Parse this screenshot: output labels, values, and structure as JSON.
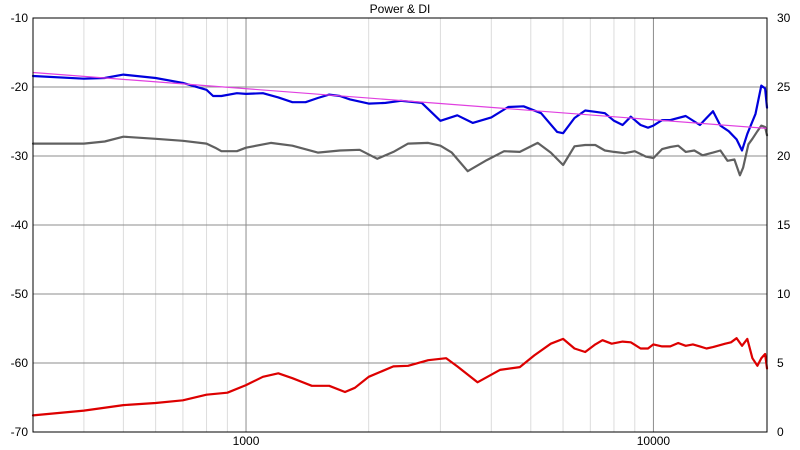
{
  "chart_data": {
    "type": "line",
    "title": "Power & DI",
    "x_scale": "log",
    "xlim": [
      300,
      19000
    ],
    "x_ticks": [
      1000,
      10000
    ],
    "x_tick_labels": [
      "1000",
      "10000"
    ],
    "y_left": {
      "lim": [
        -70,
        -10
      ],
      "ticks": [
        -70,
        -60,
        -50,
        -40,
        -30,
        -20,
        -10
      ],
      "tick_labels": [
        "-70",
        "-60",
        "-50",
        "-40",
        "-30",
        "-20",
        "-10"
      ]
    },
    "y_right": {
      "lim": [
        0,
        30
      ],
      "ticks": [
        0,
        5,
        10,
        15,
        20,
        25,
        30
      ],
      "tick_labels": [
        "0",
        "5",
        "10",
        "15",
        "20",
        "25",
        "30"
      ]
    },
    "grid": true,
    "series": [
      {
        "color": "#0000dd",
        "axis": "left",
        "points": [
          [
            300,
            -18.4
          ],
          [
            400,
            -18.8
          ],
          [
            450,
            -18.7
          ],
          [
            500,
            -18.2
          ],
          [
            600,
            -18.7
          ],
          [
            700,
            -19.4
          ],
          [
            800,
            -20.4
          ],
          [
            830,
            -21.3
          ],
          [
            870,
            -21.3
          ],
          [
            950,
            -20.9
          ],
          [
            1000,
            -21.0
          ],
          [
            1100,
            -20.9
          ],
          [
            1200,
            -21.5
          ],
          [
            1300,
            -22.2
          ],
          [
            1400,
            -22.2
          ],
          [
            1500,
            -21.6
          ],
          [
            1600,
            -21.1
          ],
          [
            1700,
            -21.3
          ],
          [
            1800,
            -21.8
          ],
          [
            2000,
            -22.4
          ],
          [
            2200,
            -22.3
          ],
          [
            2400,
            -22.0
          ],
          [
            2700,
            -22.3
          ],
          [
            3000,
            -24.9
          ],
          [
            3300,
            -24.1
          ],
          [
            3600,
            -25.2
          ],
          [
            4000,
            -24.4
          ],
          [
            4400,
            -22.9
          ],
          [
            4800,
            -22.8
          ],
          [
            5300,
            -23.8
          ],
          [
            5800,
            -26.5
          ],
          [
            6000,
            -26.7
          ],
          [
            6400,
            -24.5
          ],
          [
            6800,
            -23.4
          ],
          [
            7200,
            -23.6
          ],
          [
            7600,
            -23.8
          ],
          [
            8000,
            -24.9
          ],
          [
            8400,
            -25.5
          ],
          [
            8800,
            -24.3
          ],
          [
            9300,
            -25.5
          ],
          [
            9700,
            -25.9
          ],
          [
            10000,
            -25.6
          ],
          [
            10500,
            -24.8
          ],
          [
            11000,
            -24.8
          ],
          [
            12000,
            -24.2
          ],
          [
            13000,
            -25.5
          ],
          [
            13500,
            -24.5
          ],
          [
            14000,
            -23.5
          ],
          [
            14600,
            -25.6
          ],
          [
            15300,
            -26.4
          ],
          [
            16000,
            -27.6
          ],
          [
            16500,
            -29.2
          ],
          [
            17000,
            -26.8
          ],
          [
            17800,
            -23.9
          ],
          [
            18400,
            -19.8
          ],
          [
            18800,
            -20.2
          ],
          [
            19000,
            -23.0
          ]
        ]
      },
      {
        "color": "#606060",
        "axis": "left",
        "points": [
          [
            300,
            -28.2
          ],
          [
            400,
            -28.2
          ],
          [
            450,
            -27.9
          ],
          [
            500,
            -27.2
          ],
          [
            600,
            -27.5
          ],
          [
            700,
            -27.8
          ],
          [
            800,
            -28.2
          ],
          [
            840,
            -28.8
          ],
          [
            870,
            -29.3
          ],
          [
            950,
            -29.3
          ],
          [
            1000,
            -28.8
          ],
          [
            1150,
            -28.1
          ],
          [
            1300,
            -28.5
          ],
          [
            1500,
            -29.5
          ],
          [
            1700,
            -29.2
          ],
          [
            1900,
            -29.1
          ],
          [
            2100,
            -30.4
          ],
          [
            2300,
            -29.4
          ],
          [
            2500,
            -28.2
          ],
          [
            2800,
            -28.1
          ],
          [
            3000,
            -28.5
          ],
          [
            3200,
            -29.5
          ],
          [
            3500,
            -32.2
          ],
          [
            3900,
            -30.6
          ],
          [
            4300,
            -29.3
          ],
          [
            4700,
            -29.4
          ],
          [
            5200,
            -28.1
          ],
          [
            5600,
            -29.5
          ],
          [
            6000,
            -31.3
          ],
          [
            6400,
            -28.6
          ],
          [
            6800,
            -28.4
          ],
          [
            7200,
            -28.4
          ],
          [
            7600,
            -29.2
          ],
          [
            8000,
            -29.4
          ],
          [
            8500,
            -29.6
          ],
          [
            9000,
            -29.3
          ],
          [
            9600,
            -30.1
          ],
          [
            10000,
            -30.3
          ],
          [
            10500,
            -29.0
          ],
          [
            11000,
            -28.7
          ],
          [
            11500,
            -28.5
          ],
          [
            12000,
            -29.4
          ],
          [
            12600,
            -29.2
          ],
          [
            13200,
            -29.9
          ],
          [
            14000,
            -29.5
          ],
          [
            14600,
            -29.2
          ],
          [
            15200,
            -30.7
          ],
          [
            15800,
            -30.5
          ],
          [
            16300,
            -32.8
          ],
          [
            16600,
            -31.7
          ],
          [
            17100,
            -28.3
          ],
          [
            17500,
            -27.5
          ],
          [
            18000,
            -26.4
          ],
          [
            18400,
            -25.6
          ],
          [
            18800,
            -25.8
          ],
          [
            19000,
            -27.0
          ]
        ]
      },
      {
        "color": "#dd0000",
        "axis": "left",
        "points": [
          [
            300,
            -67.6
          ],
          [
            400,
            -66.9
          ],
          [
            500,
            -66.1
          ],
          [
            600,
            -65.8
          ],
          [
            700,
            -65.4
          ],
          [
            800,
            -64.6
          ],
          [
            900,
            -64.3
          ],
          [
            1000,
            -63.2
          ],
          [
            1100,
            -62.0
          ],
          [
            1200,
            -61.5
          ],
          [
            1300,
            -62.2
          ],
          [
            1450,
            -63.3
          ],
          [
            1600,
            -63.3
          ],
          [
            1750,
            -64.2
          ],
          [
            1850,
            -63.6
          ],
          [
            2000,
            -62.0
          ],
          [
            2300,
            -60.5
          ],
          [
            2500,
            -60.4
          ],
          [
            2800,
            -59.6
          ],
          [
            3100,
            -59.3
          ],
          [
            3300,
            -60.5
          ],
          [
            3700,
            -62.8
          ],
          [
            4200,
            -61.0
          ],
          [
            4700,
            -60.6
          ],
          [
            5100,
            -58.9
          ],
          [
            5600,
            -57.2
          ],
          [
            6000,
            -56.5
          ],
          [
            6400,
            -57.9
          ],
          [
            6800,
            -58.4
          ],
          [
            7200,
            -57.3
          ],
          [
            7500,
            -56.7
          ],
          [
            7900,
            -57.2
          ],
          [
            8400,
            -56.9
          ],
          [
            8800,
            -57.0
          ],
          [
            9300,
            -57.9
          ],
          [
            9700,
            -57.9
          ],
          [
            10000,
            -57.3
          ],
          [
            10500,
            -57.6
          ],
          [
            11000,
            -57.6
          ],
          [
            11500,
            -57.1
          ],
          [
            12000,
            -57.5
          ],
          [
            12500,
            -57.3
          ],
          [
            13000,
            -57.6
          ],
          [
            13500,
            -57.9
          ],
          [
            14000,
            -57.7
          ],
          [
            15000,
            -57.2
          ],
          [
            15500,
            -57.0
          ],
          [
            16000,
            -56.4
          ],
          [
            16500,
            -57.5
          ],
          [
            17000,
            -56.5
          ],
          [
            17500,
            -59.3
          ],
          [
            18000,
            -60.4
          ],
          [
            18400,
            -59.3
          ],
          [
            18800,
            -58.7
          ],
          [
            19000,
            -60.8
          ]
        ]
      },
      {
        "color": "#e040e0",
        "axis": "left",
        "points": [
          [
            300,
            -17.9
          ],
          [
            19000,
            -26.0
          ]
        ]
      }
    ]
  }
}
